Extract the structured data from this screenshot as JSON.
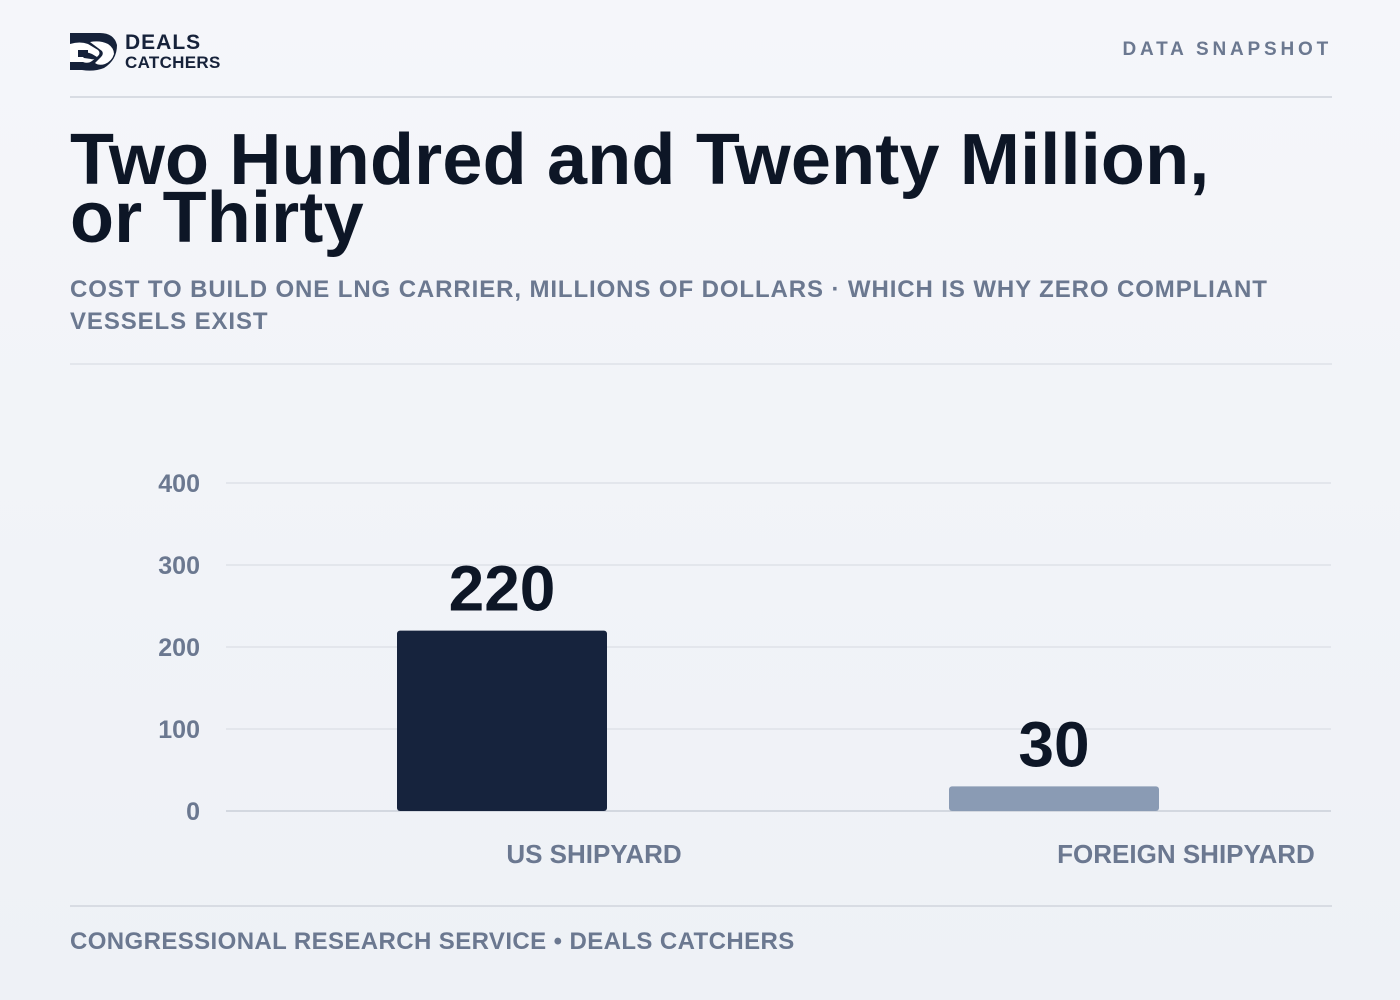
{
  "header": {
    "logo_line1": "DEALS",
    "logo_line2": "CATCHERS",
    "tag": "DATA SNAPSHOT"
  },
  "title_line1": "Two Hundred and Twenty Million,",
  "title_line2": "or Thirty",
  "subtitle": "COST TO BUILD ONE LNG CARRIER, MILLIONS OF DOLLARS · WHICH IS WHY ZERO COMPLIANT VESSELS EXIST",
  "footer": "CONGRESSIONAL RESEARCH SERVICE • DEALS CATCHERS",
  "colors": {
    "us_bar": "#16233d",
    "foreign_bar": "#8a9bb4",
    "text_dark": "#0d1626",
    "text_muted": "#6b7890",
    "gridline": "#e3e6ec"
  },
  "chart_data": {
    "type": "bar",
    "title": "",
    "xlabel": "",
    "ylabel": "",
    "categories": [
      "US SHIPYARD",
      "FOREIGN SHIPYARD"
    ],
    "values": [
      220,
      30
    ],
    "data_labels": [
      "220",
      "30"
    ],
    "ylim": [
      0,
      400
    ],
    "yticks": [
      0,
      100,
      200,
      300,
      400
    ],
    "grid": true,
    "legend": "none"
  }
}
